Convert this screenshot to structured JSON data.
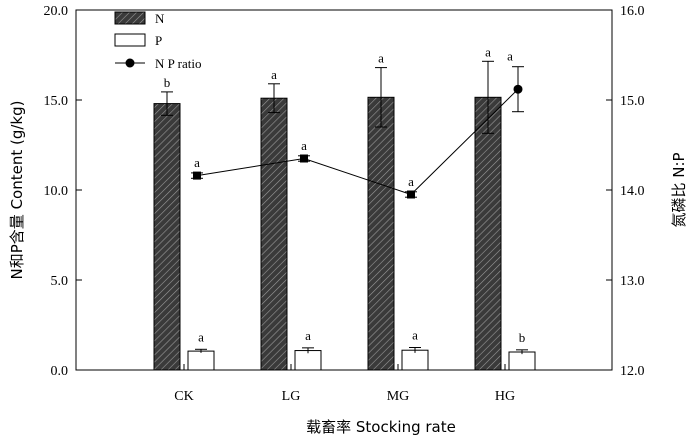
{
  "chart_data": {
    "type": "bar",
    "categories": [
      "CK",
      "LG",
      "MG",
      "HG"
    ],
    "xlabel": "载畜率 Stocking rate",
    "ylabel": "N和P含量 Content (g/kg)",
    "y2label": "氮磷比 N:P",
    "ylim": [
      0,
      20
    ],
    "y2lim": [
      12,
      16
    ],
    "yticks": [
      "0.0",
      "5.0",
      "10.0",
      "15.0",
      "20.0"
    ],
    "y2ticks": [
      "12.0",
      "13.0",
      "14.0",
      "15.0",
      "16.0"
    ],
    "grid": false,
    "legend_position": "top-left",
    "series": [
      {
        "name": "N",
        "kind": "bar",
        "style": "hatched",
        "color": "#333333",
        "values": [
          14.8,
          15.1,
          15.15,
          15.15
        ],
        "errors": [
          0.65,
          0.8,
          1.65,
          2.0
        ],
        "labels": [
          "b",
          "a",
          "a",
          "a"
        ]
      },
      {
        "name": "P",
        "kind": "bar",
        "style": "open",
        "color": "#ffffff",
        "values": [
          1.05,
          1.08,
          1.1,
          1.0
        ],
        "errors": [
          0.1,
          0.15,
          0.15,
          0.12
        ],
        "labels": [
          "a",
          "a",
          "a",
          "b"
        ]
      },
      {
        "name": "N P ratio",
        "kind": "line",
        "axis": "right",
        "color": "#000000",
        "values": [
          14.16,
          14.35,
          13.95,
          15.12
        ],
        "errors": [
          0.03,
          0.03,
          0.03,
          0.25
        ],
        "labels": [
          "a",
          "a",
          "a",
          "a"
        ]
      }
    ]
  }
}
